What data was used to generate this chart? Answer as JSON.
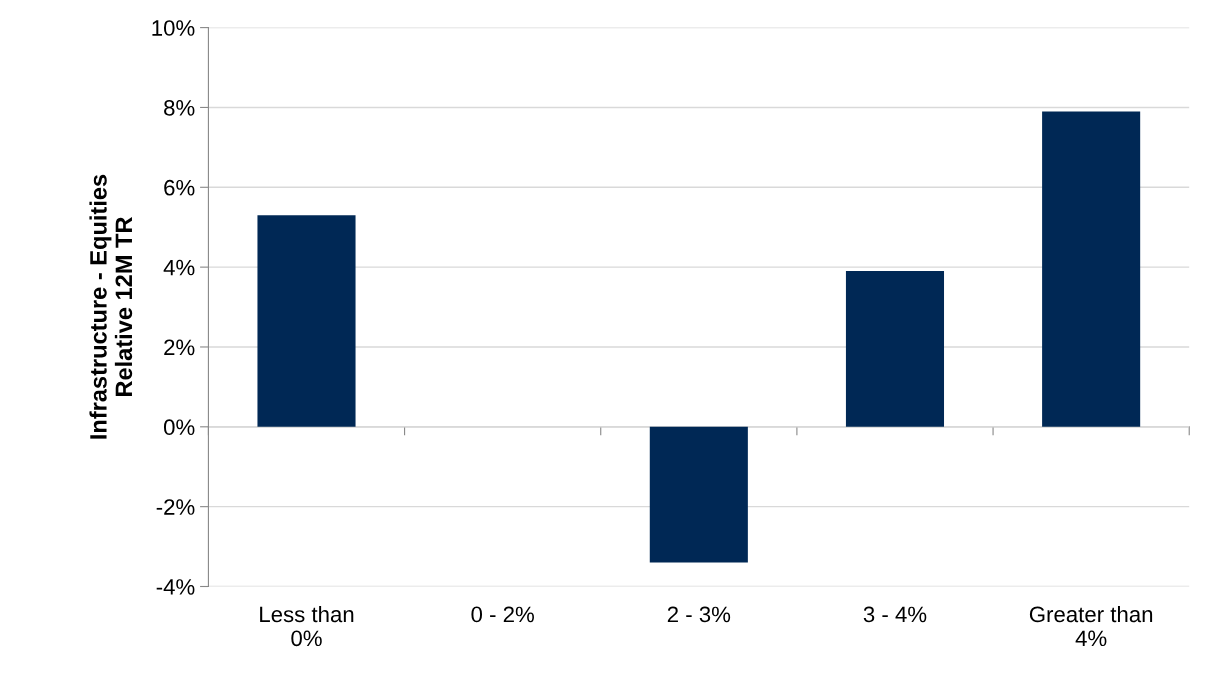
{
  "chart_data": {
    "type": "bar",
    "ylabel": "Infrastructure - Equities\nRelative 12M TR",
    "categories": [
      "Less than\n0%",
      "0 - 2%",
      "2 - 3%",
      "3 - 4%",
      "Greater than\n4%"
    ],
    "values": [
      5.3,
      0,
      -3.4,
      3.9,
      7.9
    ],
    "color": "#002855",
    "ylim": [
      -4,
      10
    ],
    "yticks": [
      {
        "value": -4,
        "label": "-4%"
      },
      {
        "value": -2,
        "label": "-2%"
      },
      {
        "value": 0,
        "label": "0%"
      },
      {
        "value": 2,
        "label": "2%"
      },
      {
        "value": 4,
        "label": "4%"
      },
      {
        "value": 6,
        "label": "6%"
      },
      {
        "value": 8,
        "label": "8%"
      },
      {
        "value": 10,
        "label": "10%"
      }
    ],
    "grid": "y"
  }
}
